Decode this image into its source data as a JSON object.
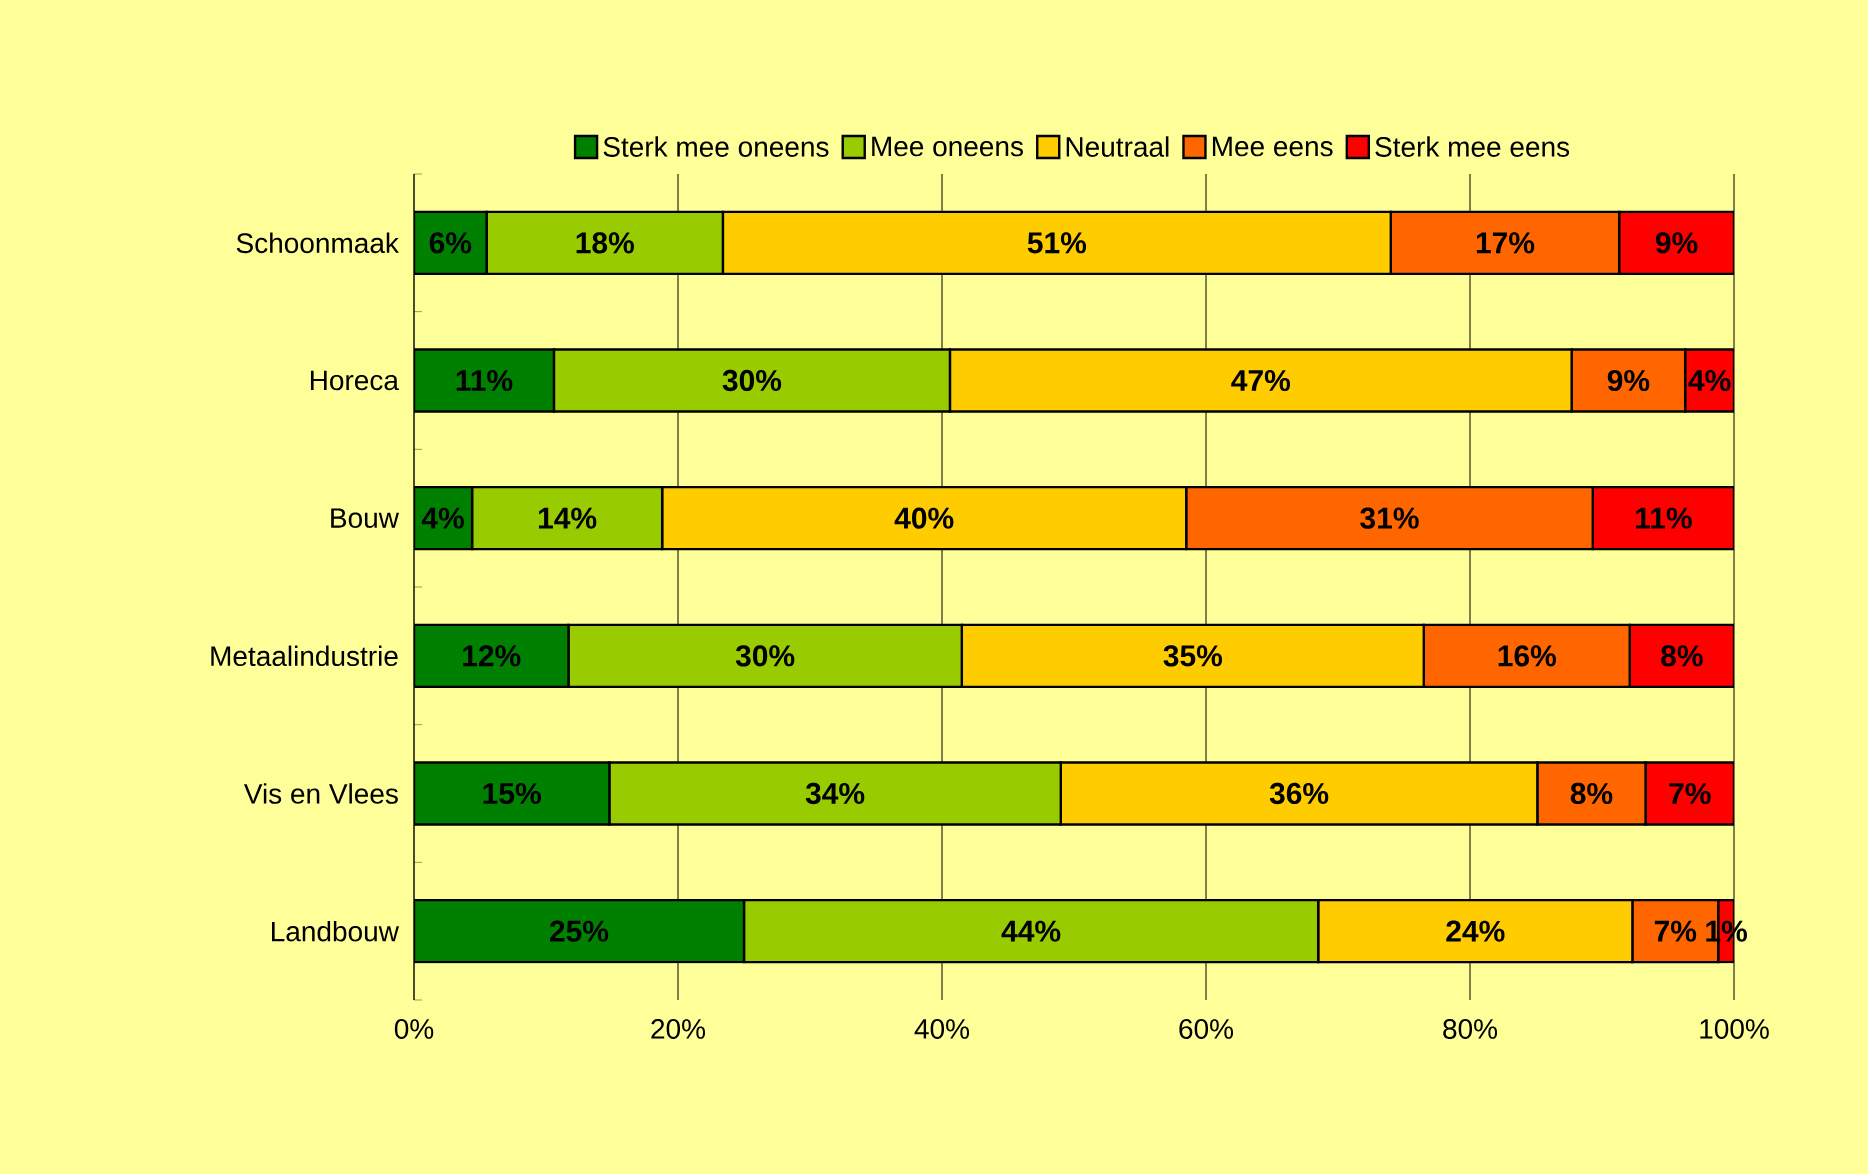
{
  "chart_data": {
    "type": "bar",
    "orientation": "horizontal",
    "stacked": true,
    "categories": [
      "Schoonmaak",
      "Horeca",
      "Bouw",
      "Metaalindustrie",
      "Vis en Vlees",
      "Landbouw"
    ],
    "series": [
      {
        "name": "Sterk mee oneens",
        "color": "#008000",
        "values": [
          5.5,
          10.6,
          4.4,
          11.7,
          14.8,
          25.0
        ],
        "value_labels": [
          "6%",
          "11%",
          "4%",
          "12%",
          "15%",
          "25%"
        ]
      },
      {
        "name": "Mee oneens",
        "color": "#99cc00",
        "values": [
          17.9,
          30.0,
          14.4,
          29.8,
          34.2,
          43.5
        ],
        "value_labels": [
          "18%",
          "30%",
          "14%",
          "30%",
          "34%",
          "44%"
        ]
      },
      {
        "name": "Neutraal",
        "color": "#ffcc00",
        "values": [
          50.6,
          47.1,
          39.7,
          35.0,
          36.1,
          23.8
        ],
        "value_labels": [
          "51%",
          "47%",
          "40%",
          "35%",
          "36%",
          "24%"
        ]
      },
      {
        "name": "Mee eens",
        "color": "#ff6600",
        "values": [
          17.3,
          8.6,
          30.8,
          15.6,
          8.2,
          6.5
        ],
        "value_labels": [
          "17%",
          "9%",
          "31%",
          "16%",
          "8%",
          "7%"
        ]
      },
      {
        "name": "Sterk mee eens",
        "color": "#ff0000",
        "values": [
          8.7,
          3.7,
          10.7,
          7.9,
          6.7,
          1.2
        ],
        "value_labels": [
          "9%",
          "4%",
          "11%",
          "8%",
          "7%",
          "1%"
        ]
      }
    ],
    "xlim": [
      0,
      100
    ],
    "xticks": [
      {
        "value": 0,
        "label": "0%"
      },
      {
        "value": 20,
        "label": "20%"
      },
      {
        "value": 40,
        "label": "40%"
      },
      {
        "value": 60,
        "label": "60%"
      },
      {
        "value": 80,
        "label": "80%"
      },
      {
        "value": 100,
        "label": "100%"
      }
    ],
    "grid": "x",
    "legend": "top"
  }
}
